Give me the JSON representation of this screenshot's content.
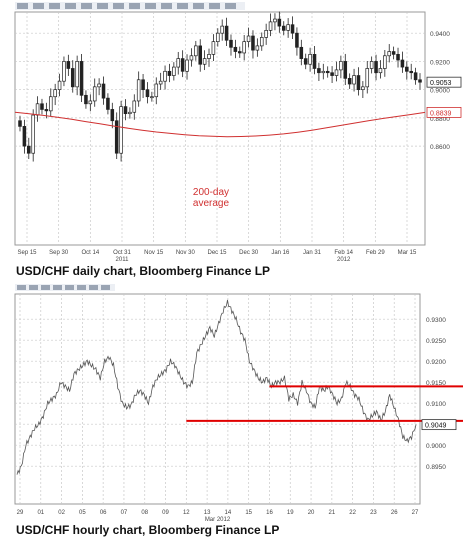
{
  "captions": {
    "daily": "USD/CHF daily chart, Bloomberg Finance LP",
    "hourly": "USD/CHF hourly chart, Bloomberg Finance LP"
  },
  "colors": {
    "candle": "#222222",
    "moving_average": "#d03030",
    "support_lines": "#e00000",
    "grid": "#c8c8c8",
    "axis_text": "#444444"
  },
  "chart_data": [
    {
      "id": "daily",
      "type": "candlestick",
      "title": "",
      "xlabel": "",
      "ylabel": "",
      "ylim": [
        0.79,
        0.955
      ],
      "yticks": [
        "0.9400",
        "0.9200",
        "0.9000",
        "0.8800",
        "0.8600"
      ],
      "xticks": [
        "Sep 15",
        "Sep 30",
        "Oct 14",
        "Oct 31",
        "Nov 15",
        "Nov 30",
        "Dec 15",
        "Dec 30",
        "Jan 16",
        "Jan 31",
        "Feb 14",
        "Feb 29",
        "Mar 15"
      ],
      "xtick_sub": [
        {
          "under": "Oct 31",
          "text": "2011"
        },
        {
          "under": "Feb 14",
          "text": "2012"
        }
      ],
      "last_price_label": "0.9053",
      "ma_label": "0.8839",
      "annotation": "200-day\naverage",
      "grid": true,
      "close": [
        0.874,
        0.86,
        0.855,
        0.882,
        0.89,
        0.886,
        0.885,
        0.895,
        0.9,
        0.906,
        0.92,
        0.915,
        0.902,
        0.92,
        0.896,
        0.89,
        0.892,
        0.902,
        0.904,
        0.894,
        0.886,
        0.878,
        0.855,
        0.888,
        0.883,
        0.884,
        0.892,
        0.907,
        0.9,
        0.895,
        0.895,
        0.904,
        0.906,
        0.913,
        0.91,
        0.916,
        0.922,
        0.913,
        0.921,
        0.924,
        0.931,
        0.918,
        0.922,
        0.925,
        0.934,
        0.94,
        0.945,
        0.935,
        0.93,
        0.927,
        0.926,
        0.934,
        0.938,
        0.928,
        0.931,
        0.937,
        0.942,
        0.948,
        0.95,
        0.945,
        0.942,
        0.946,
        0.94,
        0.93,
        0.922,
        0.918,
        0.925,
        0.915,
        0.912,
        0.913,
        0.912,
        0.91,
        0.914,
        0.92,
        0.908,
        0.904,
        0.91,
        0.9,
        0.902,
        0.915,
        0.92,
        0.912,
        0.915,
        0.924,
        0.927,
        0.925,
        0.921,
        0.916,
        0.913,
        0.912,
        0.907,
        0.9053
      ],
      "moving_average": [
        0.884,
        0.883,
        0.8818,
        0.8805,
        0.879,
        0.8774,
        0.8758,
        0.8742,
        0.8727,
        0.8713,
        0.87,
        0.869,
        0.8681,
        0.8674,
        0.867,
        0.8667,
        0.8668,
        0.8672,
        0.8678,
        0.8687,
        0.8699,
        0.8713,
        0.8729,
        0.8746,
        0.8763,
        0.878,
        0.8796,
        0.881,
        0.8824,
        0.8839
      ]
    },
    {
      "id": "hourly",
      "type": "line",
      "title": "",
      "xlabel": "Mar 2012",
      "ylabel": "",
      "ylim": [
        0.886,
        0.936
      ],
      "yticks": [
        "0.9300",
        "0.9250",
        "0.9200",
        "0.9150",
        "0.9100",
        "0.9050",
        "0.9000",
        "0.8950"
      ],
      "xticks": [
        "29",
        "01",
        "02",
        "05",
        "06",
        "07",
        "08",
        "09",
        "12",
        "13",
        "14",
        "15",
        "16",
        "19",
        "20",
        "21",
        "22",
        "23",
        "26",
        "27"
      ],
      "last_price_label": "0.9049",
      "grid": true,
      "close": [
        0.893,
        0.895,
        0.9,
        0.902,
        0.904,
        0.905,
        0.907,
        0.91,
        0.911,
        0.912,
        0.915,
        0.914,
        0.913,
        0.917,
        0.918,
        0.919,
        0.92,
        0.919,
        0.918,
        0.916,
        0.92,
        0.921,
        0.919,
        0.914,
        0.91,
        0.909,
        0.9095,
        0.912,
        0.913,
        0.912,
        0.91,
        0.914,
        0.916,
        0.917,
        0.918,
        0.92,
        0.919,
        0.917,
        0.915,
        0.914,
        0.915,
        0.922,
        0.924,
        0.926,
        0.928,
        0.926,
        0.929,
        0.932,
        0.934,
        0.932,
        0.93,
        0.927,
        0.925,
        0.92,
        0.918,
        0.916,
        0.915,
        0.916,
        0.914,
        0.915,
        0.915,
        0.916,
        0.911,
        0.912,
        0.91,
        0.915,
        0.913,
        0.91,
        0.909,
        0.914,
        0.913,
        0.914,
        0.912,
        0.91,
        0.911,
        0.915,
        0.914,
        0.912,
        0.911,
        0.908,
        0.906,
        0.907,
        0.908,
        0.906,
        0.908,
        0.912,
        0.909,
        0.906,
        0.902,
        0.901,
        0.902,
        0.9049
      ],
      "lines": [
        {
          "level": 0.914,
          "from": 12,
          "to": 26
        },
        {
          "level": 0.9058,
          "from": 8,
          "to": 26
        }
      ]
    }
  ]
}
